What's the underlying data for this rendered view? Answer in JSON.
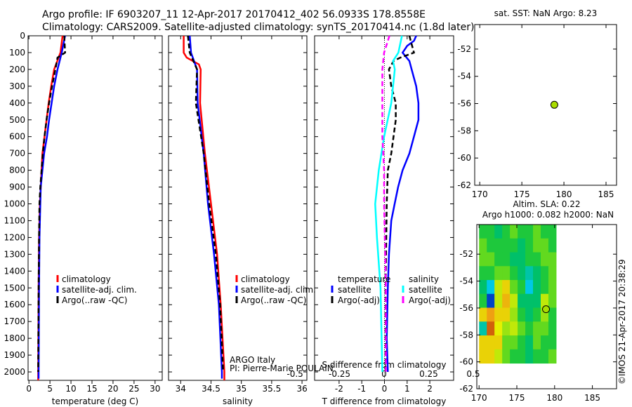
{
  "title_line1": "Argo profile: IF 6903207_11 12-Apr-2017 20170412_402 56.0933S 178.8558E",
  "title_line2": "Climatology: CARS2009. Satellite-adjusted climatology: synTS_20170414.nc (1.8d later)",
  "footer_text": "©IMOS 21-Apr-2017 20:38:29",
  "institution_line1": "ARGO Italy",
  "institution_line2": "PI: Pierre-Marie POULAIN",
  "colors": {
    "climatology": "#ff0000",
    "satellite": "#0000ff",
    "argo": "#000000",
    "sal_satellite": "#00ffff",
    "sal_argo": "#ff00ff"
  },
  "chart_data": [
    {
      "type": "line",
      "name": "temperature",
      "xlabel": "temperature (deg C)",
      "ylabel": "",
      "xlim": [
        -0.2,
        31.7
      ],
      "ylim": [
        2050,
        0
      ],
      "xticks": [
        0,
        5,
        10,
        15,
        20,
        25,
        30
      ],
      "yticks": [
        0,
        100,
        200,
        300,
        400,
        500,
        600,
        700,
        800,
        900,
        1000,
        1100,
        1200,
        1300,
        1400,
        1500,
        1600,
        1700,
        1800,
        1900,
        2000
      ],
      "legend": [
        "climatology",
        "satellite-adj. clim.",
        "Argo(..raw -QC)"
      ],
      "series": [
        {
          "name": "climatology",
          "color": "#ff0000",
          "dash": false,
          "depth": [
            0,
            100,
            200,
            300,
            400,
            500,
            600,
            700,
            800,
            900,
            1000,
            1200,
            1500,
            2000,
            2050
          ],
          "values": [
            8.0,
            7.5,
            6.0,
            5.3,
            4.7,
            4.2,
            3.7,
            3.2,
            3.0,
            2.8,
            2.6,
            2.4,
            2.3,
            2.2,
            2.2
          ]
        },
        {
          "name": "satellite-adj. clim.",
          "color": "#0000ff",
          "dash": false,
          "depth": [
            0,
            100,
            200,
            300,
            400,
            500,
            600,
            700,
            800,
            900,
            1000,
            1200,
            1500,
            2000,
            2040
          ],
          "values": [
            8.6,
            7.8,
            6.8,
            6.0,
            5.4,
            4.8,
            4.3,
            3.6,
            3.2,
            2.8,
            2.7,
            2.5,
            2.4,
            2.3,
            2.3
          ]
        },
        {
          "name": "Argo(..raw -QC)",
          "color": "#000000",
          "dash": true,
          "depth": [
            0,
            100,
            130,
            200,
            300,
            400,
            500,
            600,
            700,
            800,
            900,
            1000,
            1200,
            1500,
            2000
          ],
          "values": [
            8.4,
            8.6,
            6.8,
            6.3,
            5.5,
            4.8,
            4.2,
            3.7,
            3.3,
            3.0,
            2.7,
            2.5,
            2.4,
            2.3,
            2.2
          ]
        }
      ]
    },
    {
      "type": "line",
      "name": "salinity",
      "xlabel": "salinity",
      "ylabel": "",
      "xlim": [
        33.8,
        36.08
      ],
      "ylim": [
        2050,
        0
      ],
      "xticks": [
        34,
        34.5,
        35,
        35.5,
        36
      ],
      "legend": [
        "climatology",
        "satellite-adj. clim.",
        "Argo(..raw -QC)"
      ],
      "series": [
        {
          "name": "climatology",
          "color": "#ff0000",
          "dash": false,
          "depth": [
            0,
            100,
            130,
            170,
            200,
            400,
            700,
            1000,
            1300,
            1600,
            2000,
            2050
          ],
          "values": [
            34.05,
            34.05,
            34.1,
            34.3,
            34.33,
            34.32,
            34.4,
            34.5,
            34.6,
            34.66,
            34.72,
            34.72
          ]
        },
        {
          "name": "satellite-adj. clim.",
          "color": "#0000ff",
          "dash": false,
          "depth": [
            0,
            100,
            200,
            400,
            700,
            1000,
            1300,
            1600,
            2000,
            2040
          ],
          "values": [
            34.15,
            34.17,
            34.27,
            34.28,
            34.38,
            34.45,
            34.55,
            34.63,
            34.68,
            34.68
          ]
        },
        {
          "name": "Argo(..raw -QC)",
          "color": "#000000",
          "dash": true,
          "depth": [
            0,
            100,
            200,
            400,
            700,
            1000,
            1300,
            1600,
            2000
          ],
          "values": [
            34.12,
            34.15,
            34.27,
            34.25,
            34.38,
            34.47,
            34.58,
            34.65,
            34.7
          ]
        }
      ]
    },
    {
      "type": "line",
      "name": "difference",
      "xlabel": "T difference from climatology",
      "x2label": "S difference from climatology",
      "xlim": [
        -3.08,
        3.05
      ],
      "x2lim": [
        -0.39,
        0.39
      ],
      "ylim": [
        2050,
        0
      ],
      "xticks": [
        -2,
        -1,
        0,
        1,
        2
      ],
      "x2ticks": [
        -0.5,
        -0.25,
        0,
        0.25,
        0.5
      ],
      "legend_headers": [
        "temperature",
        "salinity"
      ],
      "legend": [
        "satellite",
        "Argo(-adj)",
        "satellite",
        "Argo(-adj)"
      ],
      "series": [
        {
          "name": "T satellite",
          "axis": "T",
          "color": "#0000ff",
          "dash": false,
          "depth": [
            0,
            30,
            60,
            100,
            150,
            200,
            300,
            400,
            500,
            600,
            700,
            800,
            900,
            1000,
            1100,
            1300,
            1500,
            1800,
            2000
          ],
          "values": [
            1.4,
            1.3,
            1.0,
            0.8,
            1.1,
            1.2,
            1.4,
            1.5,
            1.5,
            1.3,
            1.1,
            0.8,
            0.6,
            0.45,
            0.3,
            0.2,
            0.15,
            0.1,
            0.15
          ]
        },
        {
          "name": "T Argo(-adj)",
          "axis": "T",
          "color": "#000000",
          "dash": true,
          "depth": [
            0,
            50,
            100,
            130,
            150,
            200,
            300,
            400,
            500,
            600,
            700,
            800,
            1000,
            1500,
            2000
          ],
          "values": [
            1.1,
            1.2,
            1.3,
            0.7,
            0.4,
            0.2,
            0.3,
            0.5,
            0.5,
            0.4,
            0.3,
            0.15,
            0.1,
            0.05,
            0.05
          ]
        },
        {
          "name": "S satellite",
          "axis": "S",
          "color": "#00ffff",
          "dash": false,
          "depth": [
            0,
            100,
            150,
            200,
            400,
            600,
            800,
            1000,
            1200,
            1500,
            2000
          ],
          "values": [
            0.1,
            0.08,
            0.05,
            0.06,
            0.04,
            0.0,
            -0.03,
            -0.05,
            -0.04,
            -0.02,
            -0.01
          ]
        },
        {
          "name": "S Argo(-adj)",
          "axis": "S",
          "color": "#ff00ff",
          "dash": true,
          "depth": [
            0,
            100,
            200,
            400,
            600,
            800,
            1000,
            1500,
            2000
          ],
          "values": [
            0.03,
            0.0,
            -0.01,
            -0.01,
            -0.01,
            0.0,
            0.0,
            0.01,
            0.01
          ]
        }
      ]
    },
    {
      "type": "scatter",
      "name": "sst-map",
      "title": "sat. SST: NaN Argo: 8.23",
      "xlim": [
        169.4,
        186.25
      ],
      "ylim": [
        -62,
        -50.2
      ],
      "xticks": [
        170,
        175,
        180,
        185
      ],
      "yticks": [
        -52,
        -54,
        -56,
        -58,
        -60,
        -62
      ],
      "points": [
        {
          "lon": 178.86,
          "lat": -56.09
        }
      ]
    },
    {
      "type": "heatmap",
      "name": "sla-map",
      "title1": "Altim. SLA: 0.22",
      "title2": "Argo h1000: 0.082 h2000: NaN",
      "xlim": [
        169.7,
        188.2
      ],
      "ylim": [
        -62,
        -49.8
      ],
      "xticks": [
        170,
        175,
        180,
        185
      ],
      "yticks": [
        -52,
        -54,
        -56,
        -58,
        -60,
        -62
      ],
      "grid_lon": [
        170,
        180.2
      ],
      "grid_lat": [
        -49.8,
        -60.1
      ],
      "values": [
        [
          0,
          0,
          -0.05,
          0,
          0.05,
          0,
          0,
          0.05,
          0,
          0
        ],
        [
          0.05,
          0,
          0,
          0,
          0,
          -0.05,
          0,
          0.05,
          0.05,
          0
        ],
        [
          0.05,
          0.05,
          0,
          0,
          -0.05,
          -0.05,
          0,
          0,
          0.05,
          0.05
        ],
        [
          0,
          0,
          0.05,
          0.05,
          0,
          -0.05,
          -0.1,
          -0.05,
          0,
          0.05
        ],
        [
          -0.05,
          -0.15,
          0.1,
          0.15,
          0.05,
          0,
          -0.15,
          -0.05,
          0,
          0.05
        ],
        [
          0,
          -0.25,
          0.1,
          0.18,
          0.1,
          -0.05,
          -0.05,
          -0.05,
          0.1,
          0.05
        ],
        [
          0.15,
          0.2,
          0.15,
          0.15,
          0.08,
          0,
          -0.05,
          0,
          0.08,
          0
        ],
        [
          -0.1,
          0.25,
          0.12,
          0.08,
          0.1,
          0.05,
          0,
          0.05,
          0.05,
          0
        ],
        [
          0.15,
          0.15,
          0.15,
          0.05,
          0.05,
          0,
          -0.05,
          0.05,
          0,
          0
        ],
        [
          0.15,
          0.15,
          0.1,
          0.05,
          0,
          0,
          -0.05,
          0,
          0,
          0.05
        ]
      ],
      "points": [
        {
          "lon": 178.86,
          "lat": -56.09
        }
      ]
    }
  ]
}
